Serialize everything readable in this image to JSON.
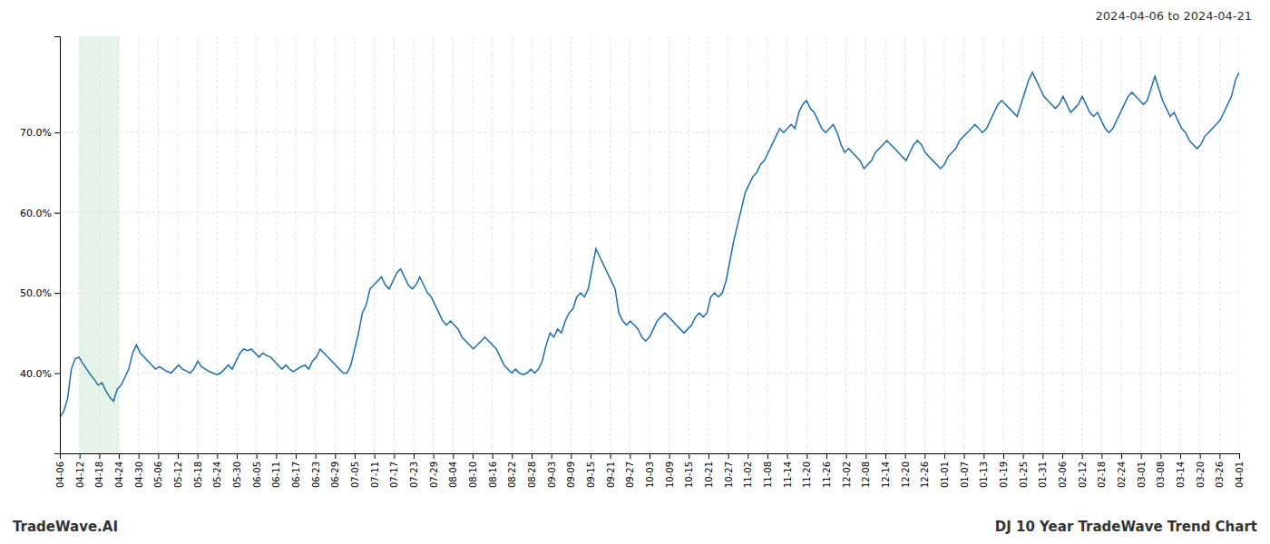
{
  "chart_data": {
    "type": "line",
    "title": "DJ 10 Year TradeWave Trend Chart",
    "subtitle": "2024-04-06 to 2024-04-21",
    "annotations": [
      "TradeWave.AI"
    ],
    "color": "#1a6faf",
    "grid": true,
    "spans": [
      {
        "x0": 1,
        "x1": 3,
        "color": "#c8e6c9"
      }
    ],
    "xlim": [
      0,
      60
    ],
    "xticks": [
      {
        "value": 0,
        "label": "04-06"
      },
      {
        "value": 1,
        "label": "04-12"
      },
      {
        "value": 2,
        "label": "04-18"
      },
      {
        "value": 3,
        "label": "04-24"
      },
      {
        "value": 4,
        "label": "04-30"
      },
      {
        "value": 5,
        "label": "05-06"
      },
      {
        "value": 6,
        "label": "05-12"
      },
      {
        "value": 7,
        "label": "05-18"
      },
      {
        "value": 8,
        "label": "05-24"
      },
      {
        "value": 9,
        "label": "05-30"
      },
      {
        "value": 10,
        "label": "06-05"
      },
      {
        "value": 11,
        "label": "06-11"
      },
      {
        "value": 12,
        "label": "06-17"
      },
      {
        "value": 13,
        "label": "06-23"
      },
      {
        "value": 14,
        "label": "06-29"
      },
      {
        "value": 15,
        "label": "07-05"
      },
      {
        "value": 16,
        "label": "07-11"
      },
      {
        "value": 17,
        "label": "07-17"
      },
      {
        "value": 18,
        "label": "07-23"
      },
      {
        "value": 19,
        "label": "07-29"
      },
      {
        "value": 20,
        "label": "08-04"
      },
      {
        "value": 21,
        "label": "08-10"
      },
      {
        "value": 22,
        "label": "08-16"
      },
      {
        "value": 23,
        "label": "08-22"
      },
      {
        "value": 24,
        "label": "08-28"
      },
      {
        "value": 25,
        "label": "09-03"
      },
      {
        "value": 26,
        "label": "09-09"
      },
      {
        "value": 27,
        "label": "09-15"
      },
      {
        "value": 28,
        "label": "09-21"
      },
      {
        "value": 29,
        "label": "09-27"
      },
      {
        "value": 30,
        "label": "10-03"
      },
      {
        "value": 31,
        "label": "10-09"
      },
      {
        "value": 32,
        "label": "10-15"
      },
      {
        "value": 33,
        "label": "10-21"
      },
      {
        "value": 34,
        "label": "10-27"
      },
      {
        "value": 35,
        "label": "11-02"
      },
      {
        "value": 36,
        "label": "11-08"
      },
      {
        "value": 37,
        "label": "11-14"
      },
      {
        "value": 38,
        "label": "11-20"
      },
      {
        "value": 39,
        "label": "11-26"
      },
      {
        "value": 40,
        "label": "12-02"
      },
      {
        "value": 41,
        "label": "12-08"
      },
      {
        "value": 42,
        "label": "12-14"
      },
      {
        "value": 43,
        "label": "12-20"
      },
      {
        "value": 44,
        "label": "12-26"
      },
      {
        "value": 45,
        "label": "01-01"
      },
      {
        "value": 46,
        "label": "01-07"
      },
      {
        "value": 47,
        "label": "01-13"
      },
      {
        "value": 48,
        "label": "01-19"
      },
      {
        "value": 49,
        "label": "01-25"
      },
      {
        "value": 50,
        "label": "01-31"
      },
      {
        "value": 51,
        "label": "02-06"
      },
      {
        "value": 52,
        "label": "02-12"
      },
      {
        "value": 53,
        "label": "02-18"
      },
      {
        "value": 54,
        "label": "02-24"
      },
      {
        "value": 55,
        "label": "03-01"
      },
      {
        "value": 56,
        "label": "03-08"
      },
      {
        "value": 57,
        "label": "03-14"
      },
      {
        "value": 58,
        "label": "03-20"
      },
      {
        "value": 59,
        "label": "03-26"
      },
      {
        "value": 60,
        "label": "04-01"
      }
    ],
    "ylim": [
      30,
      82
    ],
    "yticks": [
      {
        "value": 40.0,
        "label": "40.0%"
      },
      {
        "value": 50.0,
        "label": "50.0%"
      },
      {
        "value": 60.0,
        "label": "60.0%"
      },
      {
        "value": 70.0,
        "label": "70.0%"
      }
    ],
    "x": [
      0,
      0.194805,
      0.38961,
      0.584416,
      0.779221,
      0.974026,
      1.168831,
      1.363636,
      1.558442,
      1.753247,
      1.948052,
      2.142857,
      2.337662,
      2.532468,
      2.727273,
      2.922078,
      3.116883,
      3.311688,
      3.506494,
      3.701299,
      3.896104,
      4.090909,
      4.285714,
      4.480519,
      4.675325,
      4.87013,
      5.064935,
      5.25974,
      5.454545,
      5.649351,
      5.844156,
      6.038961,
      6.233766,
      6.428571,
      6.623377,
      6.818182,
      7.012987,
      7.207792,
      7.402597,
      7.597403,
      7.792208,
      7.987013,
      8.181818,
      8.376623,
      8.571429,
      8.766234,
      8.961039,
      9.155844,
      9.350649,
      9.545455,
      9.74026,
      9.935065,
      10.12987,
      10.324675,
      10.519481,
      10.714286,
      10.909091,
      11.103896,
      11.298701,
      11.493506,
      11.688312,
      11.883117,
      12.077922,
      12.272727,
      12.467532,
      12.662338,
      12.857143,
      13.051948,
      13.246753,
      13.441558,
      13.636364,
      13.831169,
      14.025974,
      14.220779,
      14.415584,
      14.61039,
      14.805195,
      15,
      15.194805,
      15.38961,
      15.584416,
      15.779221,
      15.974026,
      16.168831,
      16.363636,
      16.558442,
      16.753247,
      16.948052,
      17.142857,
      17.337662,
      17.532468,
      17.727273,
      17.922078,
      18.116883,
      18.311688,
      18.506494,
      18.701299,
      18.896104,
      19.090909,
      19.285714,
      19.480519,
      19.675325,
      19.87013,
      20.064935,
      20.25974,
      20.454545,
      20.649351,
      20.844156,
      21.038961,
      21.233766,
      21.428571,
      21.623377,
      21.818182,
      22.012987,
      22.207792,
      22.402597,
      22.597403,
      22.792208,
      22.987013,
      23.181818,
      23.376623,
      23.571429,
      23.766234,
      23.961039,
      24.155844,
      24.350649,
      24.545455,
      24.74026,
      24.935065,
      25.12987,
      25.324675,
      25.519481,
      25.714286,
      25.909091,
      26.103896,
      26.298701,
      26.493506,
      26.688312,
      26.883117,
      27.077922,
      27.272727,
      27.467532,
      27.662338,
      27.857143,
      28.051948,
      28.246753,
      28.441558,
      28.636364,
      28.831169,
      29.025974,
      29.220779,
      29.415584,
      29.61039,
      29.805195,
      30,
      30.194805,
      30.38961,
      30.584416,
      30.779221,
      30.974026,
      31.168831,
      31.363636,
      31.558442,
      31.753247,
      31.948052,
      32.142857,
      32.337662,
      32.532468,
      32.727273,
      32.922078,
      33.116883,
      33.311688,
      33.506494,
      33.701299,
      33.896104,
      34.090909,
      34.285714,
      34.480519,
      34.675325,
      34.87013,
      35.064935,
      35.25974,
      35.454545,
      35.649351,
      35.844156,
      36.038961,
      36.233766,
      36.428571,
      36.623377,
      36.818182,
      37.012987,
      37.207792,
      37.402597,
      37.597403,
      37.792208,
      37.987013,
      38.181818,
      38.376623,
      38.571429,
      38.766234,
      38.961039,
      39.155844,
      39.350649,
      39.545455,
      39.74026,
      39.935065,
      40.12987,
      40.324675,
      40.519481,
      40.714286,
      40.909091,
      41.103896,
      41.298701,
      41.493506,
      41.688312,
      41.883117,
      42.077922,
      42.272727,
      42.467532,
      42.662338,
      42.857143,
      43.051948,
      43.246753,
      43.441558,
      43.636364,
      43.831169,
      44.025974,
      44.220779,
      44.415584,
      44.61039,
      44.805195,
      45,
      45.194805,
      45.38961,
      45.584416,
      45.779221,
      45.974026,
      46.168831,
      46.363636,
      46.558442,
      46.753247,
      46.948052,
      47.142857,
      47.337662,
      47.532468,
      47.727273,
      47.922078,
      48.116883,
      48.311688,
      48.506494,
      48.701299,
      48.896104,
      49.090909,
      49.285714,
      49.480519,
      49.675325,
      49.87013,
      50.064935,
      50.25974,
      50.454545,
      50.649351,
      50.844156,
      51.038961,
      51.233766,
      51.428571,
      51.623377,
      51.818182,
      52.012987,
      52.207792,
      52.402597,
      52.597403,
      52.792208,
      52.987013,
      53.181818,
      53.376623,
      53.571429,
      53.766234,
      53.961039,
      54.155844,
      54.350649,
      54.545455,
      54.74026,
      54.935065,
      55.12987,
      55.324675,
      55.519481,
      55.714286,
      55.909091,
      56.103896,
      56.298701,
      56.493506,
      56.688312,
      56.883117,
      57.077922,
      57.272727,
      57.467532,
      57.662338,
      57.857143,
      58.051948,
      58.246753,
      58.441558,
      58.636364,
      58.831169,
      59.025974,
      59.220779,
      59.415584,
      59.61039,
      59.805195,
      60
    ],
    "values": [
      34.5,
      35.2,
      36.8,
      40.5,
      41.8,
      42.0,
      41.2,
      40.5,
      39.8,
      39.2,
      38.5,
      38.8,
      37.8,
      37.0,
      36.5,
      38.0,
      38.5,
      39.5,
      40.5,
      42.5,
      43.5,
      42.5,
      42.0,
      41.5,
      41.0,
      40.5,
      40.8,
      40.5,
      40.2,
      40.0,
      40.5,
      41.0,
      40.5,
      40.3,
      40.0,
      40.5,
      41.5,
      40.8,
      40.5,
      40.2,
      40.0,
      39.8,
      40.0,
      40.5,
      41.0,
      40.5,
      41.5,
      42.5,
      43.0,
      42.8,
      43.0,
      42.5,
      42.0,
      42.5,
      42.2,
      42.0,
      41.5,
      41.0,
      40.5,
      41.0,
      40.5,
      40.2,
      40.5,
      40.8,
      41.0,
      40.5,
      41.5,
      42.0,
      43.0,
      42.5,
      42.0,
      41.5,
      41.0,
      40.5,
      40.0,
      40.0,
      41.0,
      43.0,
      45.0,
      47.5,
      48.5,
      50.5,
      51.0,
      51.5,
      52.0,
      51.0,
      50.5,
      51.5,
      52.5,
      53.0,
      52.0,
      51.0,
      50.5,
      51.0,
      52.0,
      51.0,
      50.0,
      49.5,
      48.5,
      47.5,
      46.5,
      46.0,
      46.5,
      46.0,
      45.5,
      44.5,
      44.0,
      43.5,
      43.0,
      43.5,
      44.0,
      44.5,
      44.0,
      43.5,
      43.0,
      42.0,
      41.0,
      40.5,
      40.0,
      40.5,
      40.0,
      39.8,
      40.0,
      40.5,
      40.0,
      40.5,
      41.5,
      43.5,
      45.0,
      44.5,
      45.5,
      45.0,
      46.5,
      47.5,
      48.0,
      49.5,
      50.0,
      49.5,
      50.5,
      53.0,
      55.5,
      54.5,
      53.5,
      52.5,
      51.5,
      50.5,
      47.5,
      46.5,
      46.0,
      46.5,
      46.0,
      45.5,
      44.5,
      44.0,
      44.5,
      45.5,
      46.5,
      47.0,
      47.5,
      47.0,
      46.5,
      46.0,
      45.5,
      45.0,
      45.5,
      46.0,
      47.0,
      47.5,
      47.0,
      47.5,
      49.5,
      50.0,
      49.5,
      50.0,
      51.5,
      54.0,
      56.5,
      58.5,
      60.5,
      62.5,
      63.5,
      64.5,
      65.0,
      66.0,
      66.5,
      67.5,
      68.5,
      69.5,
      70.5,
      70.0,
      70.5,
      71.0,
      70.5,
      72.5,
      73.5,
      74.0,
      73.0,
      72.5,
      71.5,
      70.5,
      70.0,
      70.5,
      71.0,
      70.0,
      68.5,
      67.5,
      68.0,
      67.5,
      67.0,
      66.5,
      65.5,
      66.0,
      66.5,
      67.5,
      68.0,
      68.5,
      69.0,
      68.5,
      68.0,
      67.5,
      67.0,
      66.5,
      67.5,
      68.5,
      69.0,
      68.5,
      67.5,
      67.0,
      66.5,
      66.0,
      65.5,
      66.0,
      67.0,
      67.5,
      68.0,
      69.0,
      69.5,
      70.0,
      70.5,
      71.0,
      70.5,
      70.0,
      70.5,
      71.5,
      72.5,
      73.5,
      74.0,
      73.5,
      73.0,
      72.5,
      72.0,
      73.5,
      75.0,
      76.5,
      77.5,
      76.5,
      75.5,
      74.5,
      74.0,
      73.5,
      73.0,
      73.5,
      74.5,
      73.5,
      72.5,
      73.0,
      73.5,
      74.5,
      73.5,
      72.5,
      72.0,
      72.5,
      71.5,
      70.5,
      70.0,
      70.5,
      71.5,
      72.5,
      73.5,
      74.5,
      75.0,
      74.5,
      74.0,
      73.5,
      74.0,
      75.5,
      77.0,
      75.5,
      74.0,
      73.0,
      72.0,
      72.5,
      71.5,
      70.5,
      70.0,
      69.0,
      68.5,
      68.0,
      68.5,
      69.5,
      70.0,
      70.5,
      71.0,
      71.5,
      72.5,
      73.5,
      74.5,
      76.5,
      77.5
    ]
  }
}
